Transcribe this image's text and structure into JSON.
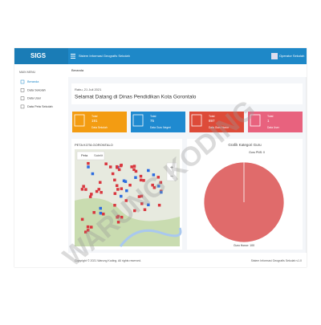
{
  "header": {
    "logo": "SIGS",
    "title": "Sistem Informasi Geografis Sekolah",
    "user": "Operator Sekolah"
  },
  "sidebar": {
    "heading": "MAIN MENU",
    "items": [
      "Beranda",
      "Data Sekolah",
      "Data User",
      "Data Peta Sekolah"
    ]
  },
  "breadcrumb": "Beranda",
  "welcome": {
    "date": "Rabu, 21 Juli 2021",
    "title": "Selamat Datang di Dinas Pendidikan Kota Gorontalo"
  },
  "cards": [
    {
      "label": "Total",
      "value": "191",
      "caption": "Data Sekolah",
      "color": "#f39c12"
    },
    {
      "label": "Total",
      "value": "75",
      "caption": "Data Guru Negeri",
      "color": "#1f8ad0"
    },
    {
      "label": "Total",
      "value": "897",
      "caption": "Data Guru Honor",
      "color": "#dd4b39"
    },
    {
      "label": "Total",
      "value": "1",
      "caption": "Data User",
      "color": "#e8627e"
    }
  ],
  "map": {
    "title": "PETA KOTA GORONTALO",
    "buttons": [
      "Peta",
      "Satelit"
    ]
  },
  "chart": {
    "type": "pie",
    "title": "Grafik Kategori Guru",
    "categories": [
      "Guru PNS",
      "Guru Honor"
    ],
    "value_labels": [
      "Guru PNS: 0",
      "Guru Honor: 100"
    ],
    "values": [
      0,
      100
    ],
    "colors": [
      "#8e8e8e",
      "#e06b6b"
    ]
  },
  "footer": {
    "left": "Copyright © 2021 Warung Koding. All rights reserved.",
    "right": "Sistem Informasi Geografis Sekolah v1.0"
  },
  "watermark": "WARUNG KODING"
}
